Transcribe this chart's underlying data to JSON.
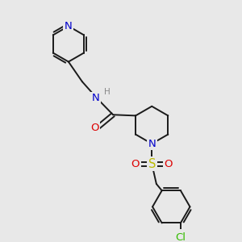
{
  "bg_color": "#e8e8e8",
  "bond_color": "#1a1a1a",
  "atom_colors": {
    "N": "#0000cc",
    "O": "#dd0000",
    "S": "#bbbb00",
    "Cl": "#33bb00",
    "C": "#1a1a1a",
    "H": "#888888"
  },
  "line_width": 1.4,
  "font_size": 8.5,
  "figsize": [
    3.0,
    3.0
  ],
  "dpi": 100
}
